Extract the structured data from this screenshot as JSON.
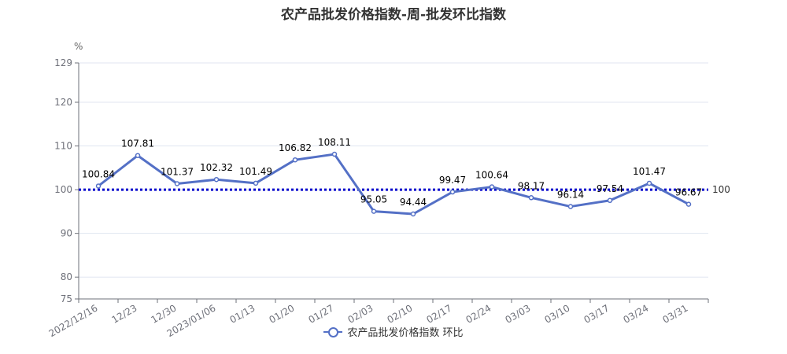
{
  "title": "农产品批发价格指数-周-批发环比指数",
  "unit": "%",
  "chart_data": {
    "type": "line",
    "title": "农产品批发价格指数-周-批发环比指数",
    "ylabel": "%",
    "categories": [
      "2022/12/16",
      "12/23",
      "12/30",
      "2023/01/06",
      "01/13",
      "01/20",
      "01/27",
      "02/03",
      "02/10",
      "02/17",
      "02/24",
      "03/03",
      "03/10",
      "03/17",
      "03/24",
      "03/31"
    ],
    "series": [
      {
        "name": "农产品批发价格指数 环比",
        "values": [
          100.84,
          107.81,
          101.37,
          102.32,
          101.49,
          106.82,
          108.11,
          95.05,
          94.44,
          99.47,
          100.64,
          98.17,
          96.14,
          97.54,
          101.47,
          96.67
        ],
        "color": "#5470c6"
      }
    ],
    "ylim": [
      75,
      129
    ],
    "yticks": [
      75,
      80,
      90,
      100,
      110,
      120,
      129
    ],
    "reference_line": {
      "value": 100,
      "label": "100",
      "color": "#0000cc"
    },
    "grid": true,
    "legend": "bottom-center"
  }
}
